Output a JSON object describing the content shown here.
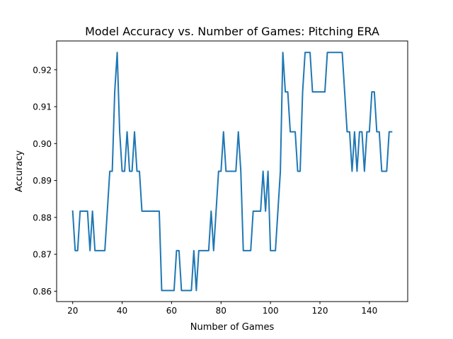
{
  "chart_data": {
    "type": "line",
    "title": "Model Accuracy vs. Number of Games: Pitching ERA",
    "xlabel": "Number of Games",
    "ylabel": "Accuracy",
    "xlim": [
      13.5,
      155.5
    ],
    "ylim": [
      0.8572,
      0.9278
    ],
    "grid": false,
    "color": "#1f77b4",
    "x_ticks": [
      20,
      40,
      60,
      80,
      100,
      120,
      140
    ],
    "x_tick_labels": [
      "20",
      "40",
      "60",
      "80",
      "100",
      "120",
      "140"
    ],
    "y_ticks": [
      0.86,
      0.87,
      0.88,
      0.89,
      0.9,
      0.91,
      0.92
    ],
    "y_tick_labels": [
      "0.86",
      "0.87",
      "0.88",
      "0.89",
      "0.90",
      "0.91",
      "0.92"
    ],
    "series": [
      {
        "x": [
          20,
          21,
          22,
          23,
          24,
          25,
          26,
          27,
          28,
          29,
          30,
          31,
          32,
          33,
          34,
          35,
          36,
          37,
          38,
          39,
          40,
          41,
          42,
          43,
          44,
          45,
          46,
          47,
          48,
          49,
          50,
          51,
          52,
          53,
          54,
          55,
          56,
          57,
          58,
          59,
          60,
          61,
          62,
          63,
          64,
          65,
          66,
          67,
          68,
          69,
          70,
          71,
          72,
          73,
          74,
          75,
          76,
          77,
          78,
          79,
          80,
          81,
          82,
          83,
          84,
          85,
          86,
          87,
          88,
          89,
          90,
          91,
          92,
          93,
          94,
          95,
          96,
          97,
          98,
          99,
          100,
          101,
          102,
          103,
          104,
          105,
          106,
          107,
          108,
          109,
          110,
          111,
          112,
          113,
          114,
          115,
          116,
          117,
          118,
          119,
          120,
          121,
          122,
          123,
          124,
          125,
          126,
          127,
          128,
          129,
          130,
          131,
          132,
          133,
          134,
          135,
          136,
          137,
          138,
          139,
          140,
          141,
          142,
          143,
          144,
          145,
          146,
          147,
          148,
          149
        ],
        "y": [
          0.8817,
          0.871,
          0.871,
          0.8817,
          0.8817,
          0.8817,
          0.8817,
          0.871,
          0.8817,
          0.871,
          0.871,
          0.871,
          0.871,
          0.871,
          0.8817,
          0.8925,
          0.8925,
          0.914,
          0.9247,
          0.9032,
          0.8925,
          0.8925,
          0.9032,
          0.8925,
          0.8925,
          0.9032,
          0.8925,
          0.8925,
          0.8817,
          0.8817,
          0.8817,
          0.8817,
          0.8817,
          0.8817,
          0.8817,
          0.8817,
          0.8602,
          0.8602,
          0.8602,
          0.8602,
          0.8602,
          0.8602,
          0.871,
          0.871,
          0.8602,
          0.8602,
          0.8602,
          0.8602,
          0.8602,
          0.871,
          0.8602,
          0.871,
          0.871,
          0.871,
          0.871,
          0.871,
          0.8817,
          0.871,
          0.8817,
          0.8925,
          0.8925,
          0.9032,
          0.8925,
          0.8925,
          0.8925,
          0.8925,
          0.8925,
          0.9032,
          0.8925,
          0.871,
          0.871,
          0.871,
          0.871,
          0.8817,
          0.8817,
          0.8817,
          0.8817,
          0.8925,
          0.8817,
          0.8925,
          0.871,
          0.871,
          0.871,
          0.8817,
          0.8925,
          0.9247,
          0.914,
          0.914,
          0.9032,
          0.9032,
          0.9032,
          0.8925,
          0.8925,
          0.914,
          0.9247,
          0.9247,
          0.9247,
          0.914,
          0.914,
          0.914,
          0.914,
          0.914,
          0.914,
          0.9247,
          0.9247,
          0.9247,
          0.9247,
          0.9247,
          0.9247,
          0.9247,
          0.914,
          0.9032,
          0.9032,
          0.8925,
          0.9032,
          0.8925,
          0.9032,
          0.9032,
          0.8925,
          0.9032,
          0.9032,
          0.914,
          0.914,
          0.9032,
          0.9032,
          0.8925,
          0.8925,
          0.8925,
          0.9032,
          0.9032
        ]
      }
    ]
  }
}
